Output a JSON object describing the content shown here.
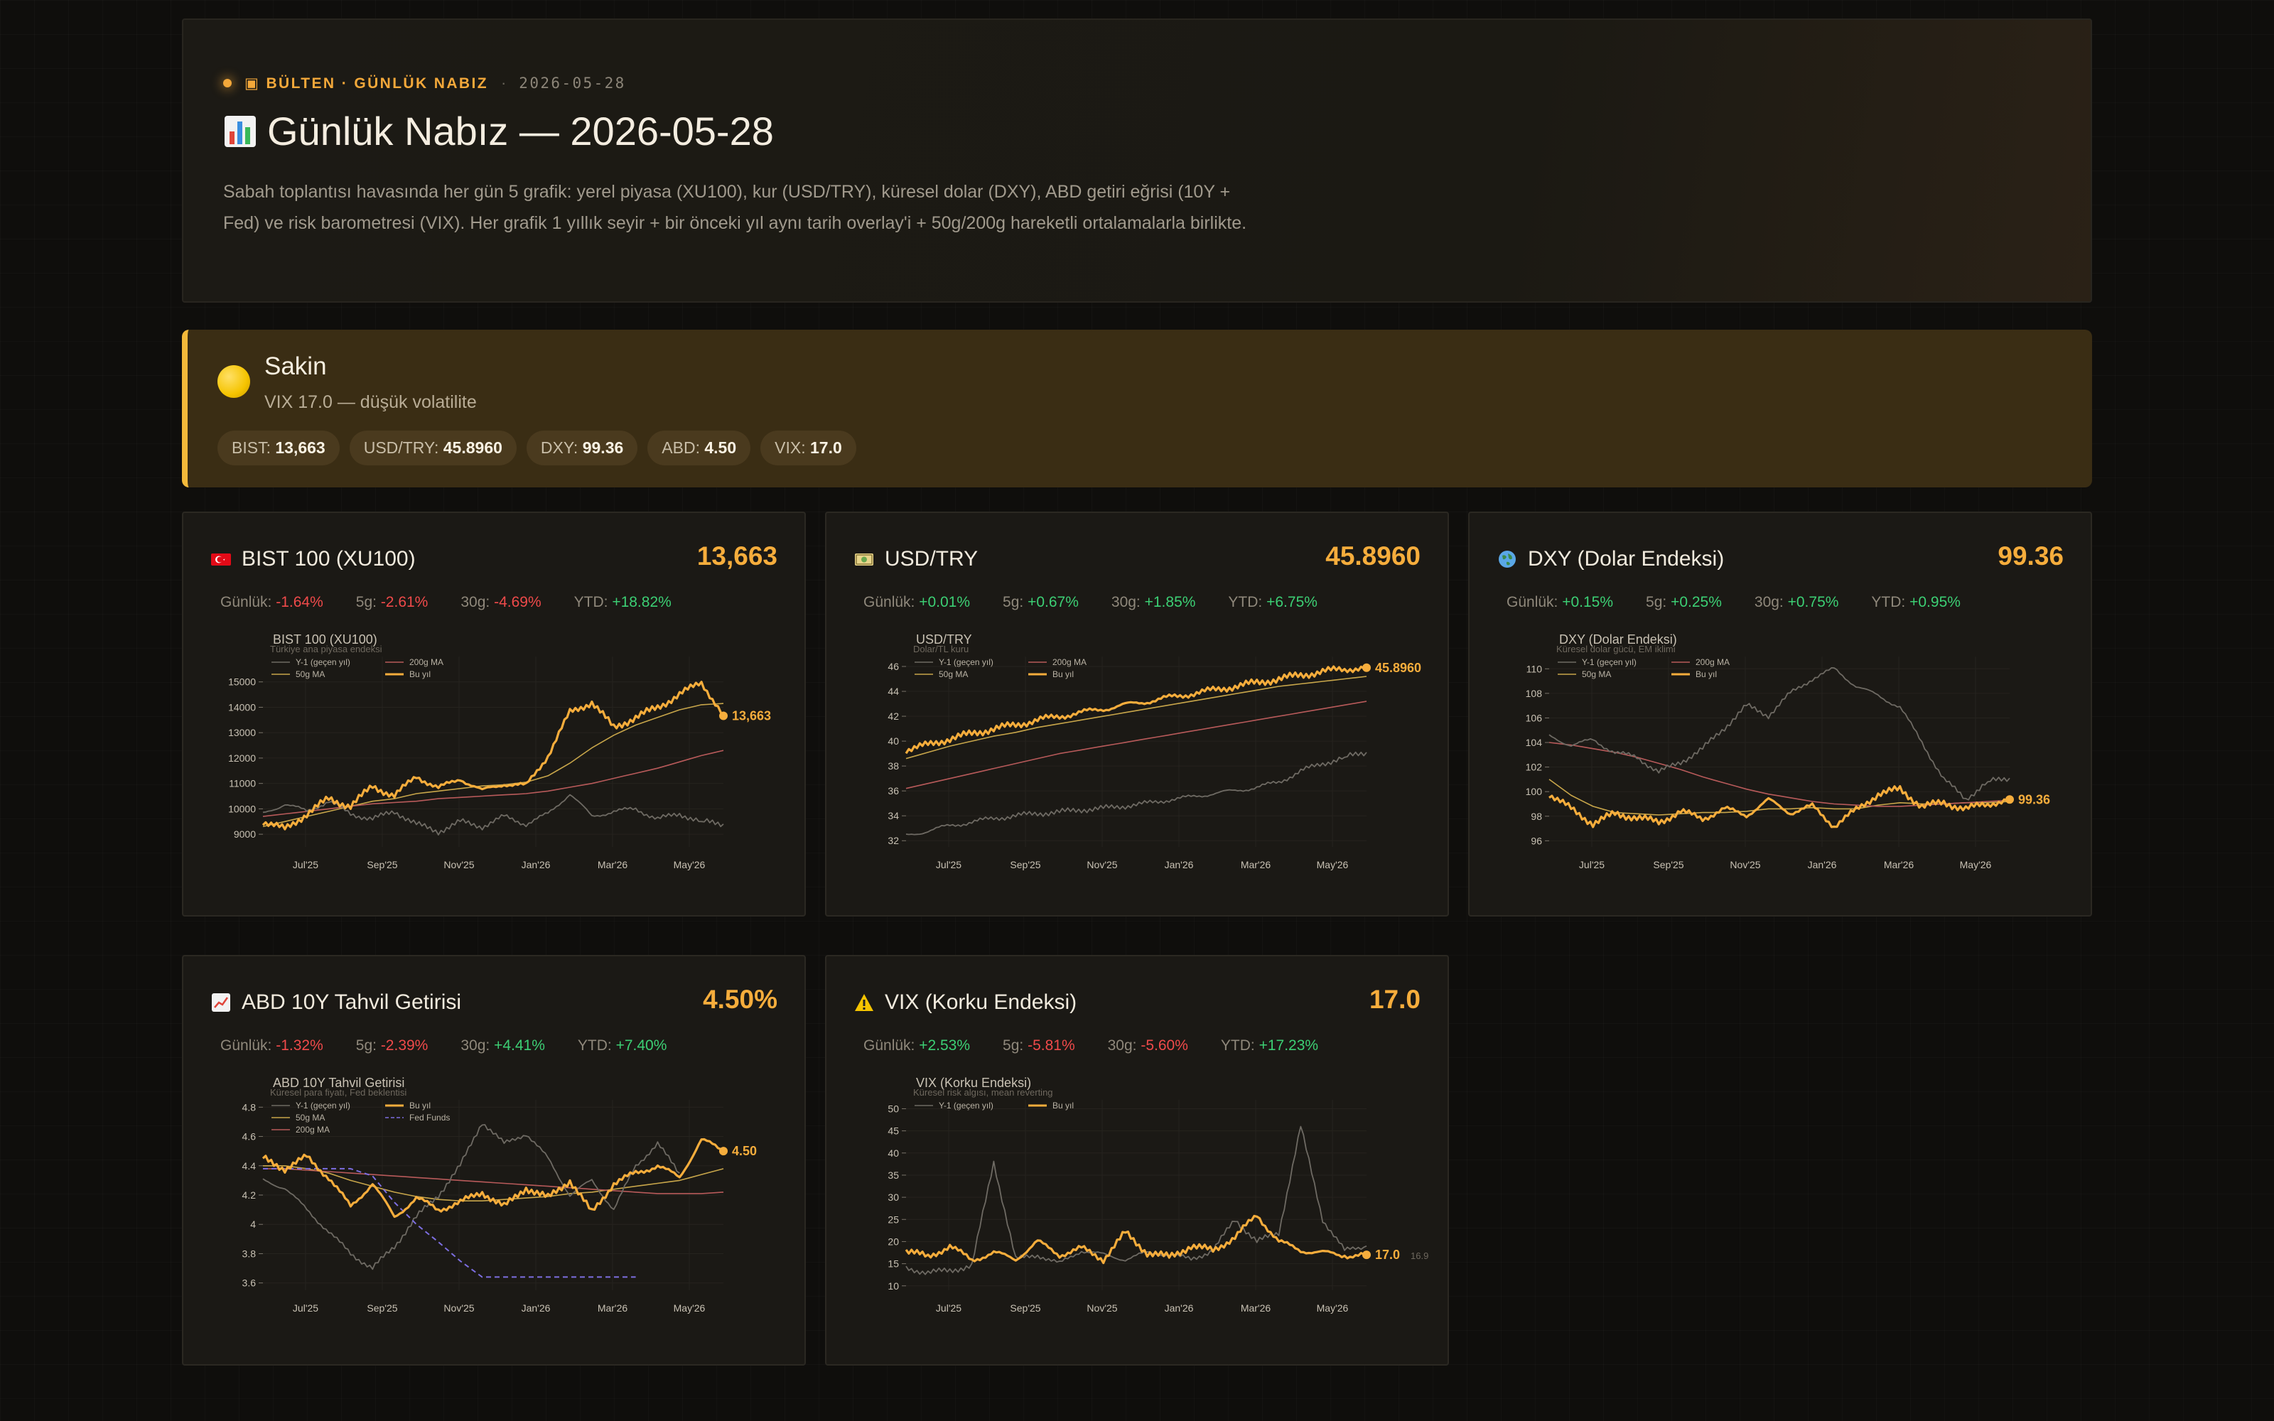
{
  "header": {
    "eyebrow": "▣ BÜLTEN · GÜNLÜK NABIZ",
    "date": "2026-05-28",
    "title_icon": "bar-chart-icon",
    "title": "Günlük Nabız — 2026-05-28",
    "description": "Sabah toplantısı havasında her gün 5 grafik: yerel piyasa (XU100), kur (USD/TRY), küresel dolar (DXY), ABD getiri eğrisi (10Y + Fed) ve risk barometresi (VIX). Her grafik 1 yıllık seyir + bir önceki yıl aynı tarih overlay'i + 50g/200g hareketli ortalamalarla birlikte."
  },
  "status": {
    "icon": "yellow-circle-icon",
    "title": "Sakin",
    "subtitle": "VIX 17.0 — düşük volatilite",
    "pills": [
      {
        "label": "BIST:",
        "value": "13,663"
      },
      {
        "label": "USD/TRY:",
        "value": "45.8960"
      },
      {
        "label": "DXY:",
        "value": "99.36"
      },
      {
        "label": "ABD:",
        "value": "4.50"
      },
      {
        "label": "VIX:",
        "value": "17.0"
      }
    ]
  },
  "stat_labels": {
    "daily": "Günlük:",
    "d5": "5g:",
    "d30": "30g:",
    "ytd": "YTD:"
  },
  "legend_labels": {
    "prev": "Y-1 (geçen yıl)",
    "ma200": "200g MA",
    "ma50": "50g MA",
    "cur": "Bu yıl",
    "fed": "Fed Funds"
  },
  "colors": {
    "accent": "#f6ad3c",
    "positive": "#3ccf74",
    "negative": "#ef4a4a",
    "prev_line": "#6e6a63",
    "ma50": "#c8a64a",
    "ma200": "#b85a5a",
    "fed": "#7c6ee0"
  },
  "cards": [
    {
      "icon": "turkey-flag-icon",
      "title": "BIST 100 (XU100)",
      "value": "13,663",
      "stats": {
        "daily": "-1.64%",
        "d5": "-2.61%",
        "d30": "-4.69%",
        "ytd": "+18.82%"
      },
      "chart_title": "BIST 100 (XU100)",
      "chart_subtitle": "Türkiye ana piyasa endeksi"
    },
    {
      "icon": "money-icon",
      "title": "USD/TRY",
      "value": "45.8960",
      "stats": {
        "daily": "+0.01%",
        "d5": "+0.67%",
        "d30": "+1.85%",
        "ytd": "+6.75%"
      },
      "chart_title": "USD/TRY",
      "chart_subtitle": "Dolar/TL kuru"
    },
    {
      "icon": "globe-icon",
      "title": "DXY (Dolar Endeksi)",
      "value": "99.36",
      "stats": {
        "daily": "+0.15%",
        "d5": "+0.25%",
        "d30": "+0.75%",
        "ytd": "+0.95%"
      },
      "chart_title": "DXY (Dolar Endeksi)",
      "chart_subtitle": "Küresel dolar gücü, EM iklimi"
    },
    {
      "icon": "chart-up-icon",
      "title": "ABD 10Y Tahvil Getirisi",
      "value": "4.50%",
      "stats": {
        "daily": "-1.32%",
        "d5": "-2.39%",
        "d30": "+4.41%",
        "ytd": "+7.40%"
      },
      "chart_title": "ABD 10Y Tahvil Getirisi",
      "chart_subtitle": "Küresel para fiyatı, Fed beklentisi"
    },
    {
      "icon": "warning-icon",
      "title": "VIX (Korku Endeksi)",
      "value": "17.0",
      "stats": {
        "daily": "+2.53%",
        "d5": "-5.81%",
        "d30": "-5.60%",
        "ytd": "+17.23%"
      },
      "chart_title": "VIX (Korku Endeksi)",
      "chart_subtitle": "Küresel risk algısı, mean reverting"
    }
  ],
  "chart_data": [
    {
      "type": "line",
      "title": "BIST 100 (XU100)",
      "subtitle": "Türkiye ana piyasa endeksi",
      "x_ticks": [
        "Jul'25",
        "Sep'25",
        "Nov'25",
        "Jan'26",
        "Mar'26",
        "May'26"
      ],
      "y_ticks": [
        9000,
        10000,
        11000,
        12000,
        13000,
        14000,
        15000
      ],
      "ylim": [
        8500,
        16000
      ],
      "end_label": "13,663",
      "series": [
        {
          "name": "Bu yıl",
          "values": [
            9500,
            9200,
            9800,
            10400,
            10100,
            10900,
            10500,
            11300,
            10800,
            11200,
            10700,
            11000,
            10900,
            12100,
            13800,
            14200,
            13200,
            13600,
            14000,
            14500,
            15000,
            13663
          ]
        },
        {
          "name": "50g MA",
          "values": [
            9300,
            9500,
            9700,
            9900,
            10100,
            10300,
            10400,
            10600,
            10700,
            10800,
            10900,
            10950,
            11050,
            11300,
            11800,
            12400,
            12900,
            13300,
            13600,
            13900,
            14100,
            14150
          ]
        },
        {
          "name": "200g MA",
          "values": [
            9700,
            9800,
            9900,
            10000,
            10100,
            10200,
            10250,
            10300,
            10400,
            10450,
            10500,
            10550,
            10600,
            10700,
            10850,
            11000,
            11200,
            11400,
            11600,
            11850,
            12100,
            12300
          ]
        },
        {
          "name": "Y-1 (geçen yıl)",
          "values": [
            9800,
            10200,
            9900,
            10300,
            9800,
            9600,
            9900,
            9400,
            9100,
            9500,
            9300,
            9700,
            9400,
            9800,
            10600,
            9700,
            9900,
            10000,
            9600,
            9800,
            9500,
            9400
          ]
        }
      ]
    },
    {
      "type": "line",
      "title": "USD/TRY",
      "subtitle": "Dolar/TL kuru",
      "x_ticks": [
        "Jul'25",
        "Sep'25",
        "Nov'25",
        "Jan'26",
        "Mar'26",
        "May'26"
      ],
      "y_ticks": [
        32,
        34,
        36,
        38,
        40,
        42,
        44,
        46
      ],
      "ylim": [
        31.5,
        46.8
      ],
      "end_label": "45.8960",
      "series": [
        {
          "name": "Bu yıl",
          "values": [
            39.3,
            39.7,
            40.2,
            40.6,
            41.0,
            41.3,
            41.7,
            42.0,
            42.3,
            42.6,
            42.9,
            43.2,
            43.5,
            43.8,
            44.1,
            44.4,
            44.7,
            45.0,
            45.3,
            45.6,
            45.8,
            45.9
          ]
        },
        {
          "name": "50g MA",
          "values": [
            38.6,
            39.1,
            39.6,
            40.0,
            40.4,
            40.7,
            41.1,
            41.4,
            41.7,
            42.0,
            42.3,
            42.6,
            42.9,
            43.2,
            43.5,
            43.8,
            44.1,
            44.4,
            44.6,
            44.8,
            45.0,
            45.2
          ]
        },
        {
          "name": "200g MA",
          "values": [
            36.2,
            36.6,
            37.0,
            37.4,
            37.8,
            38.2,
            38.6,
            39.0,
            39.3,
            39.6,
            39.9,
            40.2,
            40.5,
            40.8,
            41.1,
            41.4,
            41.7,
            42.0,
            42.3,
            42.6,
            42.9,
            43.2
          ]
        },
        {
          "name": "Y-1 (geçen yıl)",
          "values": [
            32.4,
            32.8,
            33.2,
            33.5,
            33.8,
            34.0,
            34.2,
            34.3,
            34.5,
            34.6,
            34.8,
            35.0,
            35.3,
            35.5,
            35.8,
            36.0,
            36.3,
            36.7,
            37.6,
            38.2,
            38.7,
            39.1
          ]
        }
      ]
    },
    {
      "type": "line",
      "title": "DXY (Dolar Endeksi)",
      "subtitle": "Küresel dolar gücü, EM iklimi",
      "x_ticks": [
        "Jul'25",
        "Sep'25",
        "Nov'25",
        "Jan'26",
        "Mar'26",
        "May'26"
      ],
      "y_ticks": [
        96,
        98,
        100,
        102,
        104,
        106,
        108,
        110
      ],
      "ylim": [
        95.5,
        111
      ],
      "end_label": "99.36",
      "series": [
        {
          "name": "Bu yıl",
          "values": [
            99.8,
            98.6,
            97.4,
            98.2,
            97.9,
            97.5,
            98.4,
            97.8,
            98.6,
            98.1,
            99.3,
            98.3,
            98.8,
            97.2,
            98.5,
            99.8,
            100.2,
            98.8,
            99.1,
            98.6,
            99.0,
            99.36
          ]
        },
        {
          "name": "50g MA",
          "values": [
            101.0,
            99.7,
            98.8,
            98.3,
            98.2,
            98.1,
            98.2,
            98.3,
            98.3,
            98.4,
            98.6,
            98.6,
            98.7,
            98.6,
            98.6,
            98.9,
            99.1,
            99.0,
            99.0,
            99.1,
            99.1,
            99.2
          ]
        },
        {
          "name": "200g MA",
          "values": [
            104.0,
            103.8,
            103.5,
            103.2,
            102.8,
            102.3,
            101.8,
            101.2,
            100.7,
            100.2,
            99.8,
            99.5,
            99.2,
            99.0,
            98.9,
            98.8,
            98.8,
            98.9,
            99.0,
            99.1,
            99.2,
            99.3
          ]
        },
        {
          "name": "Y-1 (geçen yıl)",
          "values": [
            104.5,
            103.8,
            104.2,
            103.2,
            102.8,
            101.6,
            102.4,
            103.5,
            105.2,
            107.0,
            106.2,
            108.0,
            109.2,
            110.0,
            108.6,
            107.8,
            106.9,
            104.0,
            101.0,
            99.4,
            100.8,
            101.1
          ]
        }
      ]
    },
    {
      "type": "line",
      "title": "ABD 10Y Tahvil Getirisi",
      "subtitle": "Küresel para fiyatı, Fed beklentisi",
      "x_ticks": [
        "Jul'25",
        "Sep'25",
        "Nov'25",
        "Jan'26",
        "Mar'26",
        "May'26"
      ],
      "y_ticks": [
        3.6,
        3.8,
        4.0,
        4.2,
        4.4,
        4.6,
        4.8
      ],
      "ylim": [
        3.55,
        4.85
      ],
      "end_label": "4.50",
      "series": [
        {
          "name": "Bu yıl",
          "values": [
            4.45,
            4.38,
            4.46,
            4.32,
            4.12,
            4.28,
            4.05,
            4.18,
            4.1,
            4.15,
            4.22,
            4.12,
            4.25,
            4.18,
            4.3,
            4.08,
            4.28,
            4.35,
            4.4,
            4.32,
            4.58,
            4.5
          ]
        },
        {
          "name": "50g MA",
          "values": [
            4.4,
            4.4,
            4.38,
            4.35,
            4.3,
            4.26,
            4.22,
            4.19,
            4.17,
            4.16,
            4.16,
            4.17,
            4.18,
            4.19,
            4.21,
            4.22,
            4.24,
            4.26,
            4.28,
            4.3,
            4.34,
            4.38
          ]
        },
        {
          "name": "200g MA",
          "values": [
            4.38,
            4.38,
            4.37,
            4.36,
            4.35,
            4.34,
            4.33,
            4.32,
            4.31,
            4.3,
            4.29,
            4.28,
            4.27,
            4.26,
            4.25,
            4.24,
            4.23,
            4.22,
            4.21,
            4.21,
            4.21,
            4.22
          ]
        },
        {
          "name": "Y-1 (geçen yıl)",
          "values": [
            4.3,
            4.25,
            4.1,
            3.95,
            3.8,
            3.7,
            3.85,
            4.05,
            4.2,
            4.4,
            4.7,
            4.55,
            4.62,
            4.45,
            4.2,
            4.3,
            4.1,
            4.4,
            4.55,
            4.35,
            null,
            null
          ]
        },
        {
          "name": "Fed Funds",
          "values": [
            4.38,
            4.38,
            4.38,
            4.38,
            4.38,
            4.33,
            4.15,
            4.0,
            3.88,
            3.75,
            3.64,
            3.64,
            3.64,
            3.64,
            3.64,
            3.64,
            3.64,
            3.64,
            null,
            null,
            null,
            null
          ]
        }
      ]
    },
    {
      "type": "line",
      "title": "VIX (Korku Endeksi)",
      "subtitle": "Küresel risk algısı, mean reverting",
      "x_ticks": [
        "Jul'25",
        "Sep'25",
        "Nov'25",
        "Jan'26",
        "Mar'26",
        "May'26"
      ],
      "y_ticks": [
        10,
        15,
        20,
        25,
        30,
        35,
        40,
        45,
        50
      ],
      "ylim": [
        9,
        52
      ],
      "end_label": "17.0",
      "baseline_label": "16.9",
      "series": [
        {
          "name": "Bu yıl",
          "values": [
            18,
            16.5,
            19,
            15.8,
            17.5,
            16,
            20,
            17,
            18.5,
            16,
            22,
            17.5,
            16.5,
            19,
            18,
            21,
            26,
            20,
            18,
            17.5,
            16.8,
            17.0
          ]
        },
        {
          "name": "Y-1 (geçen yıl)",
          "values": [
            14,
            13,
            13.5,
            14.5,
            38,
            16,
            17,
            15,
            18,
            17,
            16,
            17.5,
            17,
            16,
            18,
            25,
            20,
            22,
            46,
            25,
            18,
            19
          ]
        }
      ]
    }
  ]
}
